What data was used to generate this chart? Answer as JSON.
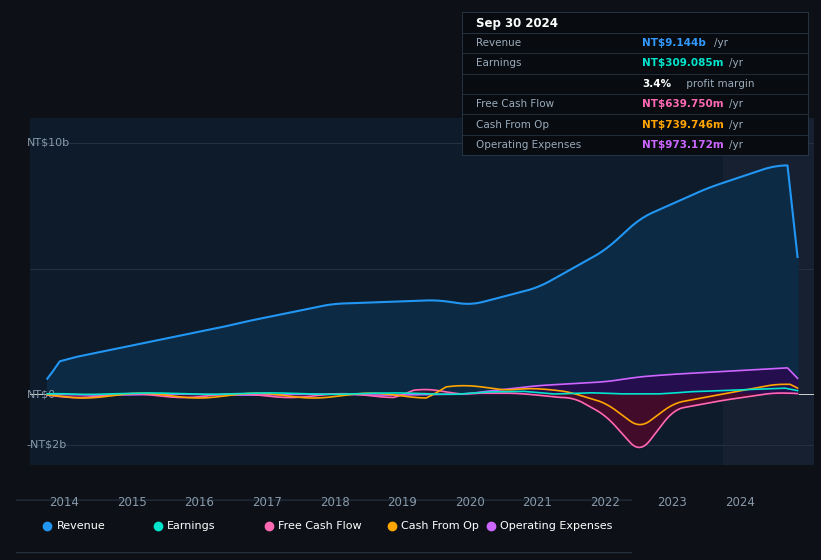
{
  "background_color": "#0d1117",
  "plot_bg_color": "#0d1b2a",
  "grid_color": "#2a3a4a",
  "title_box": {
    "date": "Sep 30 2024",
    "rows": [
      {
        "label": "Revenue",
        "value": "NT$9.144b",
        "suffix": " /yr",
        "value_color": "#3399ff"
      },
      {
        "label": "Earnings",
        "value": "NT$309.085m",
        "suffix": " /yr",
        "value_color": "#00e5cc"
      },
      {
        "label": "",
        "bold": "3.4%",
        "rest": " profit margin",
        "value_color": "#ffffff"
      },
      {
        "label": "Free Cash Flow",
        "value": "NT$639.750m",
        "suffix": " /yr",
        "value_color": "#ff69b4"
      },
      {
        "label": "Cash From Op",
        "value": "NT$739.746m",
        "suffix": " /yr",
        "value_color": "#ffa500"
      },
      {
        "label": "Operating Expenses",
        "value": "NT$973.172m",
        "suffix": " /yr",
        "value_color": "#cc66ff"
      }
    ]
  },
  "ylabel_top": "NT$10b",
  "ylabel_mid": "NT$0",
  "ylabel_bot": "-NT$2b",
  "xlabel_vals": [
    2014,
    2015,
    2016,
    2017,
    2018,
    2019,
    2020,
    2021,
    2022,
    2023,
    2024
  ],
  "ylim_low": -2800000000,
  "ylim_high": 11000000000,
  "series": {
    "revenue": {
      "color": "#2196f3",
      "fill_color": "#0d2a45",
      "lw": 1.5
    },
    "earnings": {
      "color": "#00e5cc",
      "lw": 1.2
    },
    "free_cash_flow": {
      "color": "#ff69b4",
      "fill_color": "#4a0a2a",
      "lw": 1.2
    },
    "cash_from_op": {
      "color": "#ffa500",
      "lw": 1.2
    },
    "operating_expenses": {
      "color": "#cc66ff",
      "fill_color": "#2a0a50",
      "lw": 1.2
    }
  },
  "legend": [
    {
      "label": "Revenue",
      "color": "#2196f3"
    },
    {
      "label": "Earnings",
      "color": "#00e5cc"
    },
    {
      "label": "Free Cash Flow",
      "color": "#ff69b4"
    },
    {
      "label": "Cash From Op",
      "color": "#ffa500"
    },
    {
      "label": "Operating Expenses",
      "color": "#cc66ff"
    }
  ]
}
